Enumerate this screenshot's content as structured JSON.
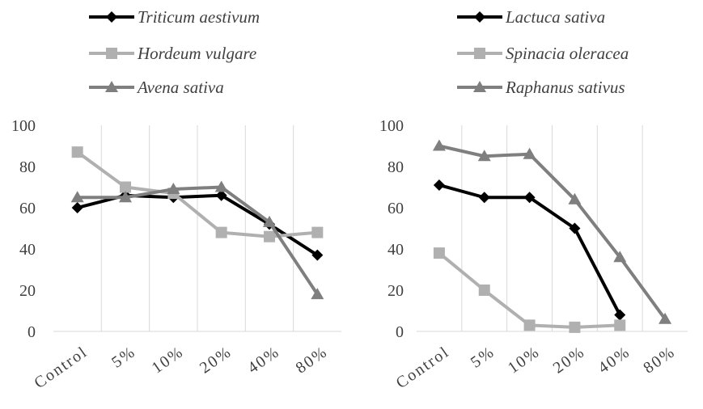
{
  "chart_data": [
    {
      "type": "line",
      "categories": [
        "Control",
        "5%",
        "10%",
        "20%",
        "40%",
        "80%"
      ],
      "ylim": [
        0,
        100
      ],
      "yticks": [
        "0",
        "20",
        "40",
        "60",
        "80",
        "100"
      ],
      "grid": "vertical",
      "legend_position": "top",
      "series": [
        {
          "name": "Triticum aestivum",
          "values": [
            60,
            66,
            65,
            66,
            52,
            37
          ],
          "color": "#000000",
          "marker": "diamond"
        },
        {
          "name": "Hordeum vulgare",
          "values": [
            87,
            70,
            67,
            48,
            46,
            48
          ],
          "color": "#b0b0b0",
          "marker": "square"
        },
        {
          "name": "Avena sativa",
          "values": [
            65,
            65,
            69,
            70,
            53,
            18
          ],
          "color": "#7f7f7f",
          "marker": "triangle"
        }
      ]
    },
    {
      "type": "line",
      "categories": [
        "Control",
        "5%",
        "10%",
        "20%",
        "40%",
        "80%"
      ],
      "ylim": [
        0,
        100
      ],
      "yticks": [
        "0",
        "20",
        "40",
        "60",
        "80",
        "100"
      ],
      "grid": "vertical",
      "legend_position": "top",
      "series": [
        {
          "name": "Lactuca sativa",
          "values": [
            71,
            65,
            65,
            50,
            8,
            null
          ],
          "color": "#000000",
          "marker": "diamond"
        },
        {
          "name": "Spinacia oleracea",
          "values": [
            38,
            20,
            3,
            2,
            3,
            null
          ],
          "color": "#b0b0b0",
          "marker": "square"
        },
        {
          "name": "Raphanus sativus",
          "values": [
            90,
            85,
            86,
            64,
            36,
            6
          ],
          "color": "#7f7f7f",
          "marker": "triangle"
        }
      ]
    }
  ]
}
